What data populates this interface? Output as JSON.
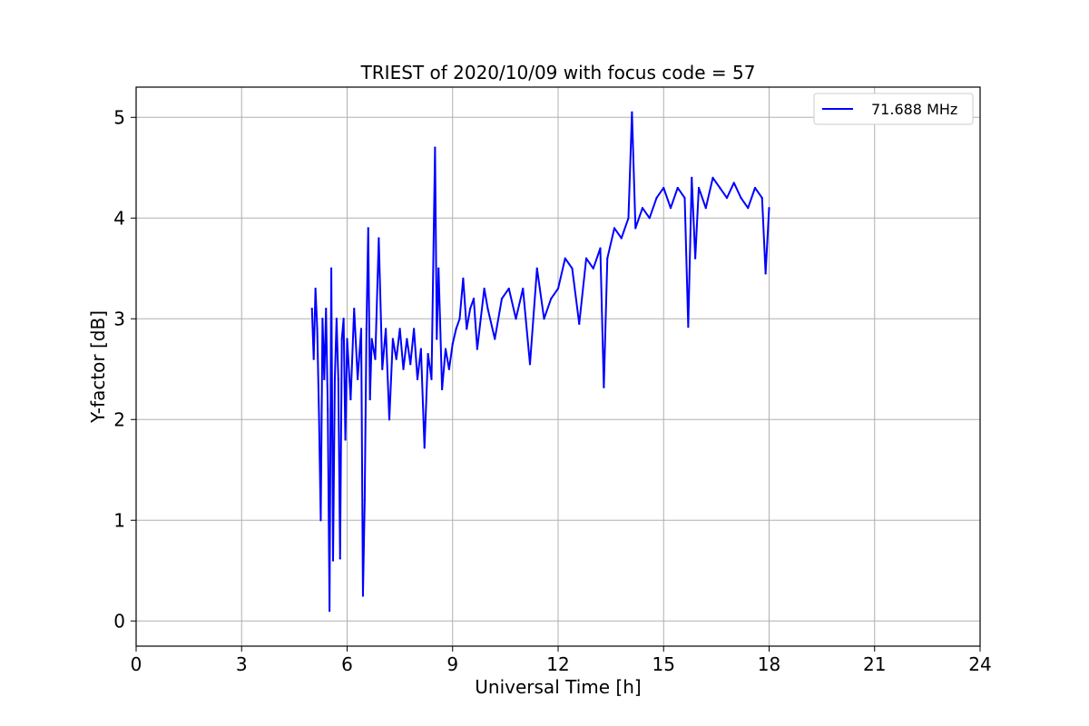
{
  "chart_data": {
    "type": "line",
    "title": "TRIEST of 2020/10/09 with focus code = 57",
    "xlabel": "Universal Time [h]",
    "ylabel": "Y-factor [dB]",
    "xlim": [
      0,
      24
    ],
    "ylim": [
      -0.25,
      5.3
    ],
    "xticks": [
      0,
      3,
      6,
      9,
      12,
      15,
      18,
      21,
      24
    ],
    "yticks": [
      0,
      1,
      2,
      3,
      4,
      5
    ],
    "grid": true,
    "legend_position": "top-right",
    "series": [
      {
        "name": "71.688 MHz",
        "color": "#0000ff",
        "x": [
          5.0,
          5.05,
          5.1,
          5.15,
          5.2,
          5.25,
          5.3,
          5.35,
          5.4,
          5.45,
          5.5,
          5.55,
          5.6,
          5.65,
          5.7,
          5.75,
          5.8,
          5.85,
          5.9,
          5.95,
          6.0,
          6.1,
          6.2,
          6.3,
          6.4,
          6.45,
          6.5,
          6.55,
          6.6,
          6.65,
          6.7,
          6.8,
          6.9,
          7.0,
          7.1,
          7.2,
          7.3,
          7.4,
          7.5,
          7.6,
          7.7,
          7.8,
          7.9,
          8.0,
          8.1,
          8.2,
          8.3,
          8.4,
          8.5,
          8.55,
          8.6,
          8.7,
          8.8,
          8.9,
          9.0,
          9.1,
          9.2,
          9.3,
          9.4,
          9.5,
          9.6,
          9.7,
          9.8,
          9.9,
          10.0,
          10.2,
          10.4,
          10.6,
          10.8,
          11.0,
          11.2,
          11.4,
          11.6,
          11.8,
          12.0,
          12.2,
          12.4,
          12.6,
          12.8,
          13.0,
          13.2,
          13.3,
          13.4,
          13.6,
          13.8,
          14.0,
          14.1,
          14.2,
          14.4,
          14.6,
          14.8,
          15.0,
          15.2,
          15.4,
          15.6,
          15.7,
          15.8,
          15.9,
          16.0,
          16.2,
          16.4,
          16.6,
          16.8,
          17.0,
          17.2,
          17.4,
          17.6,
          17.8,
          17.9,
          18.0
        ],
        "values": [
          3.1,
          2.6,
          3.3,
          2.9,
          2.05,
          1.0,
          3.0,
          2.4,
          3.1,
          2.1,
          0.1,
          3.5,
          0.6,
          2.4,
          3.0,
          2.4,
          0.62,
          2.8,
          3.0,
          1.8,
          2.8,
          2.2,
          3.1,
          2.4,
          2.9,
          0.25,
          1.2,
          2.9,
          3.9,
          2.2,
          2.8,
          2.6,
          3.8,
          2.5,
          2.9,
          2.0,
          2.8,
          2.6,
          2.9,
          2.5,
          2.8,
          2.55,
          2.9,
          2.4,
          2.7,
          1.72,
          2.65,
          2.4,
          4.7,
          2.8,
          3.5,
          2.3,
          2.7,
          2.5,
          2.75,
          2.9,
          3.0,
          3.4,
          2.9,
          3.1,
          3.2,
          2.7,
          3.0,
          3.3,
          3.1,
          2.8,
          3.2,
          3.3,
          3.0,
          3.3,
          2.55,
          3.5,
          3.0,
          3.2,
          3.3,
          3.6,
          3.5,
          2.95,
          3.6,
          3.5,
          3.7,
          2.32,
          3.6,
          3.9,
          3.8,
          4.0,
          5.05,
          3.9,
          4.1,
          4.0,
          4.2,
          4.3,
          4.1,
          4.3,
          4.2,
          2.92,
          4.4,
          3.6,
          4.3,
          4.1,
          4.4,
          4.3,
          4.2,
          4.35,
          4.2,
          4.1,
          4.3,
          4.2,
          3.45,
          4.1
        ]
      }
    ]
  }
}
